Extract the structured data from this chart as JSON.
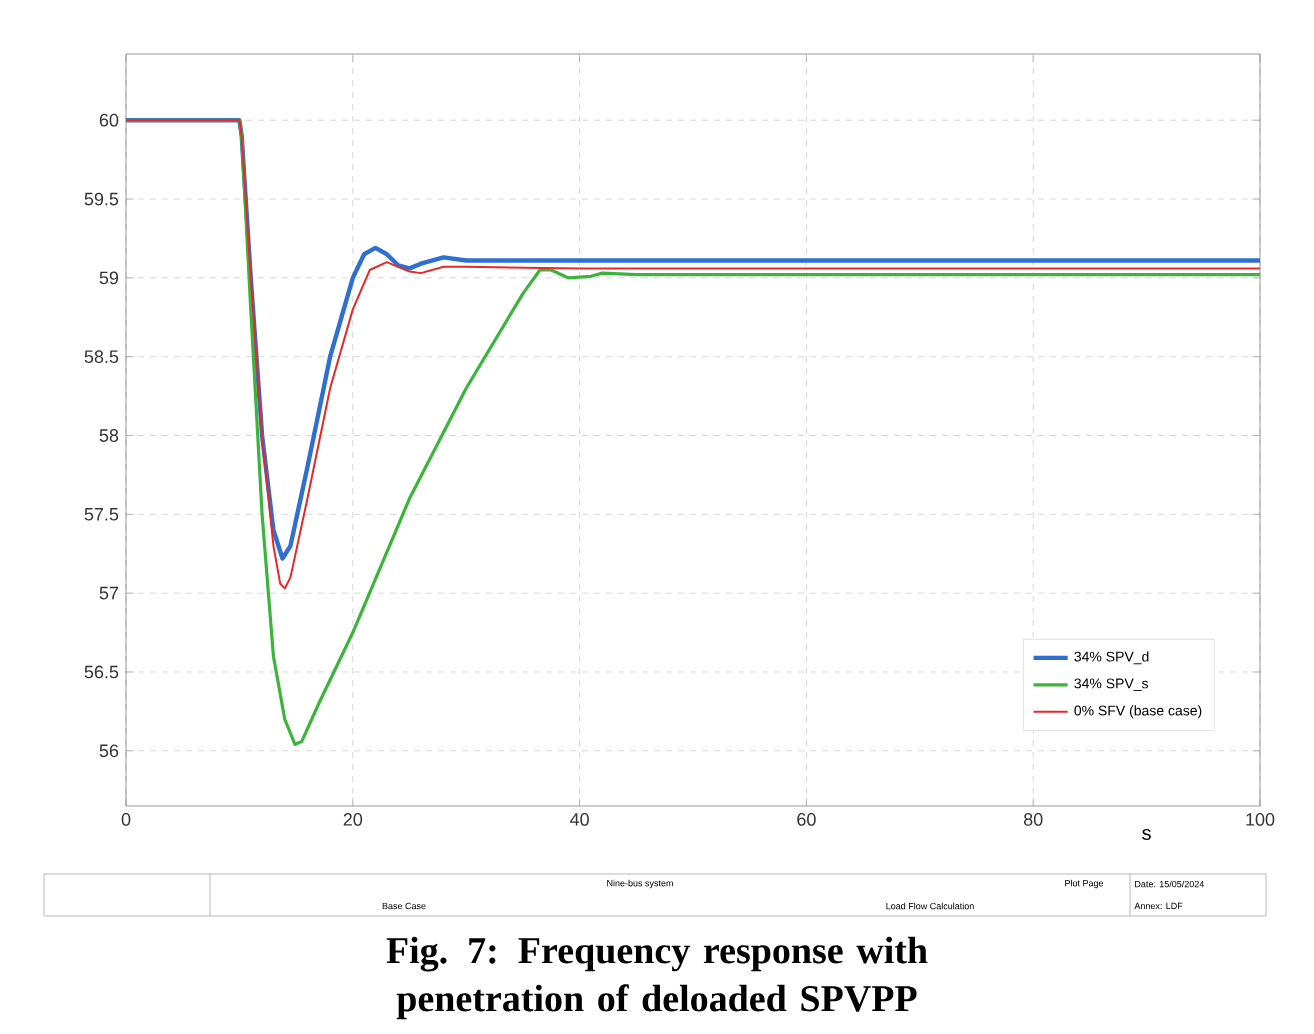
{
  "chart_data": {
    "type": "line",
    "title": "Fig. 7: Frequency response with penetration of deloaded SPVPP",
    "xlabel": "s",
    "xlim": [
      0,
      100
    ],
    "xticks": [
      0,
      20,
      40,
      60,
      80,
      100
    ],
    "ylim": [
      55.65,
      60.42
    ],
    "yticks": [
      56,
      56.5,
      57,
      57.5,
      58,
      58.5,
      59,
      59.5,
      60
    ],
    "grid": true,
    "legend": "bottom right",
    "marker": "none",
    "line_style": "solid",
    "annotations": [
      "Nine-bus system",
      "Base Case",
      "Load Flow Calculation",
      "Plot Page",
      "Date: 15/05/2024",
      "Annex: LDF"
    ],
    "series": [
      {
        "name": "34% SPV_d",
        "color": "#2e6fd0",
        "x": [
          0,
          10,
          10.2,
          11,
          12,
          13,
          13.8,
          14.5,
          16,
          18,
          20,
          21,
          22,
          23,
          24,
          25,
          26,
          28,
          30,
          34,
          40,
          100
        ],
        "values": [
          60,
          60,
          59.9,
          59,
          58,
          57.4,
          57.22,
          57.3,
          57.8,
          58.5,
          59.0,
          59.15,
          59.19,
          59.15,
          59.08,
          59.06,
          59.09,
          59.13,
          59.11,
          59.11,
          59.11,
          59.11
        ]
      },
      {
        "name": "34% SPV_s",
        "color": "#3cb43c",
        "x": [
          0,
          10,
          10.2,
          11,
          12,
          13,
          14,
          14.9,
          15.5,
          17,
          20,
          25,
          30,
          35,
          36.5,
          37.5,
          39,
          41,
          42,
          45,
          100
        ],
        "values": [
          60,
          60,
          59.9,
          58.8,
          57.5,
          56.6,
          56.2,
          56.04,
          56.06,
          56.3,
          56.75,
          57.6,
          58.3,
          58.9,
          59.05,
          59.05,
          59.0,
          59.01,
          59.03,
          59.02,
          59.02
        ]
      },
      {
        "name": "0% SFV (base case)",
        "color": "#e82828",
        "x": [
          0,
          10,
          10.2,
          11,
          12,
          13,
          13.6,
          14,
          14.5,
          16,
          18,
          20,
          21.5,
          23,
          24,
          25,
          26,
          28,
          30,
          40,
          100
        ],
        "values": [
          60,
          60,
          59.9,
          59,
          58,
          57.3,
          57.06,
          57.03,
          57.1,
          57.6,
          58.3,
          58.8,
          59.05,
          59.1,
          59.07,
          59.04,
          59.03,
          59.07,
          59.07,
          59.06,
          59.06
        ]
      }
    ]
  }
}
